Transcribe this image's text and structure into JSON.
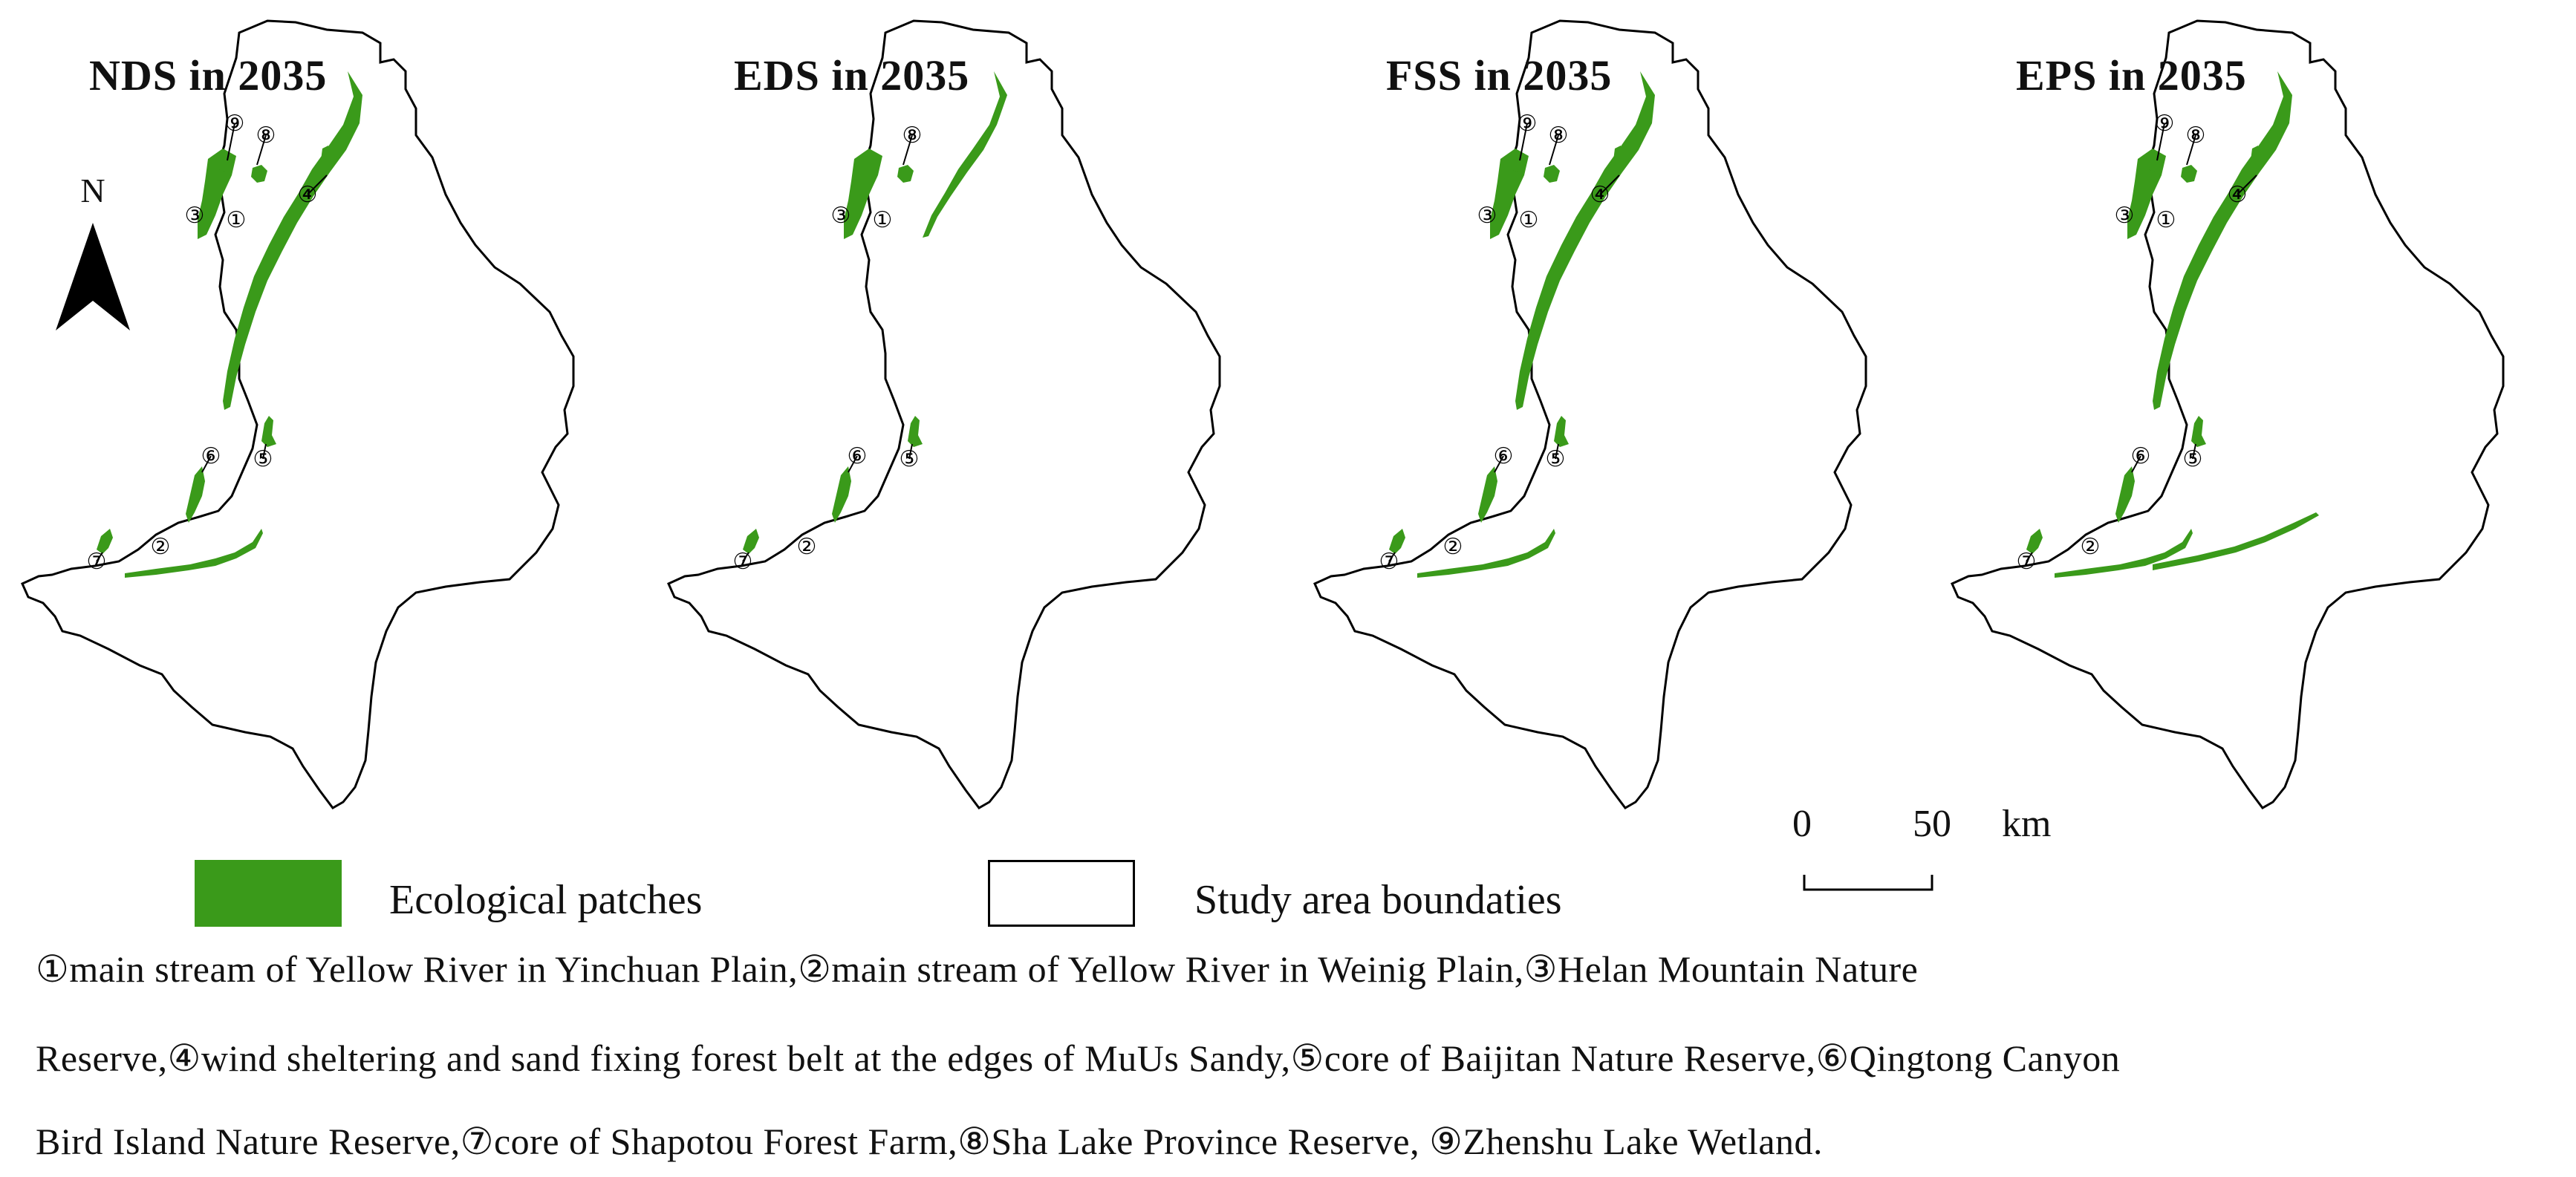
{
  "panels": [
    {
      "title": "NDS in 2035",
      "scenario": "NDS"
    },
    {
      "title": "EDS in 2035",
      "scenario": "EDS"
    },
    {
      "title": "FSS in 2035",
      "scenario": "FSS"
    },
    {
      "title": "EPS in 2035",
      "scenario": "EPS"
    }
  ],
  "markers": [
    "①",
    "②",
    "③",
    "④",
    "⑤",
    "⑥",
    "⑦",
    "⑧",
    "⑨"
  ],
  "north_arrow": {
    "label": "N"
  },
  "scale_bar": {
    "start": "0",
    "end": "50",
    "unit": "km"
  },
  "legend": {
    "patches": {
      "label": "Ecological patches",
      "color": "#3a9a1a"
    },
    "boundary": {
      "label": "Study area boundaties",
      "color": "#ffffff"
    }
  },
  "caption": {
    "line1": "①main stream of Yellow River in Yinchuan Plain,②main stream of Yellow River in Weinig Plain,③Helan Mountain Nature",
    "line2": "Reserve,④wind sheltering and sand fixing forest belt at the edges of MuUs Sandy,⑤core of Baijitan Nature Reserve,⑥Qingtong Canyon",
    "line3": "Bird Island Nature Reserve,⑦core of Shapotou Forest Farm,⑧Sha Lake Province Reserve, ⑨Zhenshu Lake Wetland."
  },
  "colors": {
    "patch": "#3a9a1a",
    "boundary": "#000000"
  }
}
